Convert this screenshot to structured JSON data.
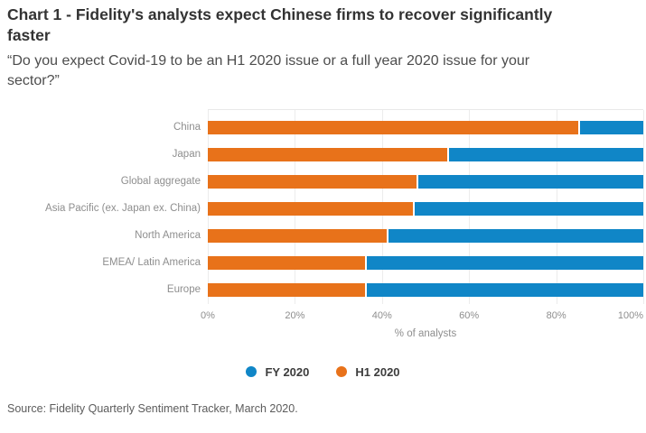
{
  "title": "Chart 1 - Fidelity's analysts expect Chinese firms to recover significantly faster",
  "subtitle": "“Do you expect Covid-19 to be an H1 2020 issue or a full year 2020 issue for your sector?”",
  "source": "Source: Fidelity Quarterly Sentiment Tracker, March 2020.",
  "colors": {
    "fy2020_blue": "#1086C7",
    "h12020_orange": "#E8721A",
    "gridline": "#ececec",
    "title_text": "#333333",
    "muted_text": "#8e8e8e"
  },
  "chart_data": {
    "type": "bar",
    "orientation": "horizontal",
    "stacked": true,
    "categories": [
      "China",
      "Japan",
      "Global aggregate",
      "Asia Pacific (ex. Japan ex. China)",
      "North America",
      "EMEA/ Latin America",
      "Europe"
    ],
    "series": [
      {
        "name": "H1 2020",
        "color": "#E8721A",
        "values": [
          85,
          55,
          48,
          47,
          41,
          36,
          36
        ]
      },
      {
        "name": "FY 2020",
        "color": "#1086C7",
        "values": [
          15,
          45,
          52,
          53,
          59,
          64,
          64
        ]
      }
    ],
    "xlabel": "% of analysts",
    "x_ticks": [
      "0%",
      "20%",
      "40%",
      "60%",
      "80%",
      "100%"
    ],
    "xlim": [
      0,
      100
    ],
    "grid": "vertical-light",
    "legend": [
      {
        "label": "FY 2020",
        "color": "#1086C7"
      },
      {
        "label": "H1 2020",
        "color": "#E8721A"
      }
    ],
    "legend_position": "bottom-center"
  }
}
